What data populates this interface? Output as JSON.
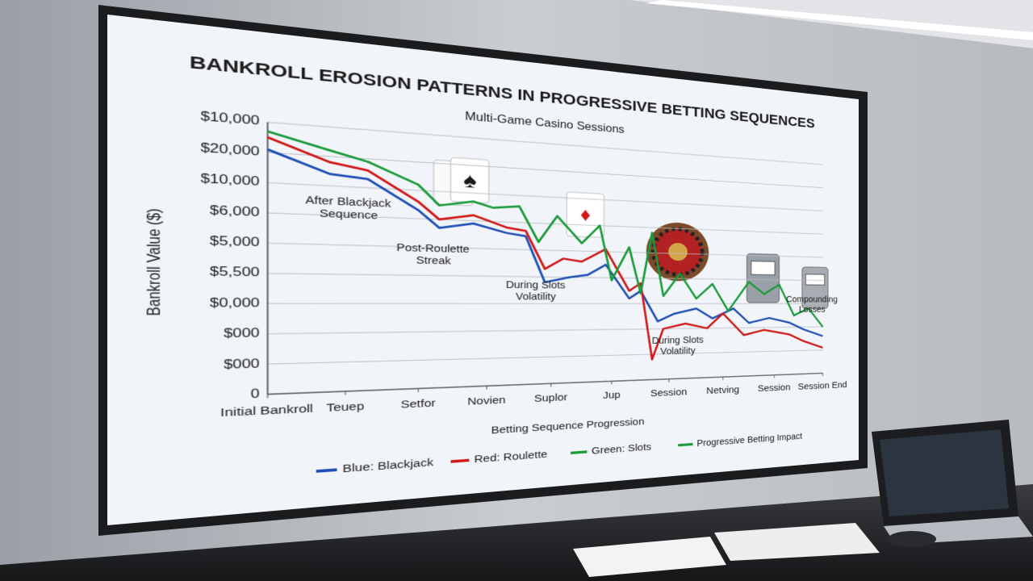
{
  "chart_data": {
    "type": "line",
    "title": "BANKROLL EROSION PATTERNS IN PROGRESSIVE BETTING SEQUENCES",
    "subtitle": "Multi-Game Casino Sessions",
    "y_label": "Bankroll Value ($)",
    "x_label": "Betting Sequence Progression",
    "xlim": [
      0,
      9
    ],
    "xticks": [
      {
        "value": 0,
        "label": "Initial Bankroll"
      },
      {
        "value": 1,
        "label": "Teuep"
      },
      {
        "value": 2,
        "label": "Setfor"
      },
      {
        "value": 3,
        "label": "Novien"
      },
      {
        "value": 4,
        "label": "Suplor"
      },
      {
        "value": 5,
        "label": "Jup"
      },
      {
        "value": 6,
        "label": "Session"
      },
      {
        "value": 7,
        "label": "Netving"
      },
      {
        "value": 8,
        "label": "Session"
      },
      {
        "value": 9,
        "label": "Session End"
      }
    ],
    "ylim": [
      0,
      9
    ],
    "yticks": [
      {
        "value": 0,
        "label": "0"
      },
      {
        "value": 1,
        "label": "$000"
      },
      {
        "value": 2,
        "label": "$000"
      },
      {
        "value": 3,
        "label": "$0,000"
      },
      {
        "value": 4,
        "label": "$5,500"
      },
      {
        "value": 5,
        "label": "$5,000"
      },
      {
        "value": 6,
        "label": "$6,000"
      },
      {
        "value": 7,
        "label": "$10,000"
      },
      {
        "value": 8,
        "label": "$20,000"
      },
      {
        "value": 9,
        "label": "$10,000"
      }
    ],
    "grid": true,
    "series": [
      {
        "name": "Blue: Blackjack",
        "color": "#1f4fb4",
        "x": [
          0,
          0.8,
          1.3,
          2,
          2.3,
          2.8,
          3.3,
          3.6,
          3.9,
          4.3,
          4.6,
          4.9,
          5.3,
          5.5,
          5.8,
          6.1,
          6.5,
          6.8,
          7.2,
          7.5,
          7.9,
          8.3,
          8.6,
          9
        ],
        "values": [
          8.1,
          7.4,
          7.3,
          6.3,
          5.7,
          5.9,
          5.6,
          5.5,
          3.8,
          4.0,
          4.1,
          4.5,
          3.2,
          3.5,
          2.3,
          2.6,
          2.8,
          2.4,
          2.8,
          2.2,
          2.4,
          2.2,
          1.9,
          1.6
        ]
      },
      {
        "name": "Red: Roulette",
        "color": "#d01818",
        "x": [
          0,
          0.8,
          1.3,
          2,
          2.3,
          2.8,
          3.3,
          3.6,
          3.9,
          4.2,
          4.5,
          4.9,
          5.3,
          5.5,
          5.7,
          5.9,
          6.3,
          6.7,
          7.0,
          7.4,
          7.8,
          8.3,
          8.6,
          9
        ],
        "values": [
          8.5,
          7.8,
          7.6,
          6.6,
          6.0,
          6.2,
          5.8,
          5.7,
          4.3,
          4.7,
          4.6,
          5.1,
          3.5,
          3.8,
          0.8,
          2.0,
          2.2,
          2.0,
          2.6,
          1.7,
          1.9,
          1.7,
          1.4,
          1.1
        ]
      },
      {
        "name": "Green: Slots",
        "color": "#1a9a3a",
        "x": [
          0,
          0.8,
          1.3,
          2,
          2.3,
          2.8,
          3.1,
          3.5,
          3.8,
          4.1,
          4.5,
          4.8,
          5.0,
          5.3,
          5.5,
          5.7,
          5.9,
          6.2,
          6.5,
          6.8,
          7.1,
          7.5,
          7.8,
          8.1,
          8.4,
          8.7,
          9
        ],
        "values": [
          8.7,
          8.2,
          7.9,
          7.2,
          6.5,
          6.7,
          6.5,
          6.6,
          5.3,
          6.3,
          5.3,
          6.0,
          3.9,
          5.2,
          3.4,
          5.8,
          3.3,
          4.2,
          3.2,
          3.8,
          2.7,
          3.9,
          3.4,
          3.8,
          2.5,
          2.8,
          2.0
        ]
      }
    ],
    "legend_note": "Progressive Betting Impact",
    "annotations": [
      "After Blackjack Sequence",
      "Post-Roulette Streak",
      "During Slots Volatility",
      "During Slots Volatility",
      "Compounding Losses"
    ]
  }
}
